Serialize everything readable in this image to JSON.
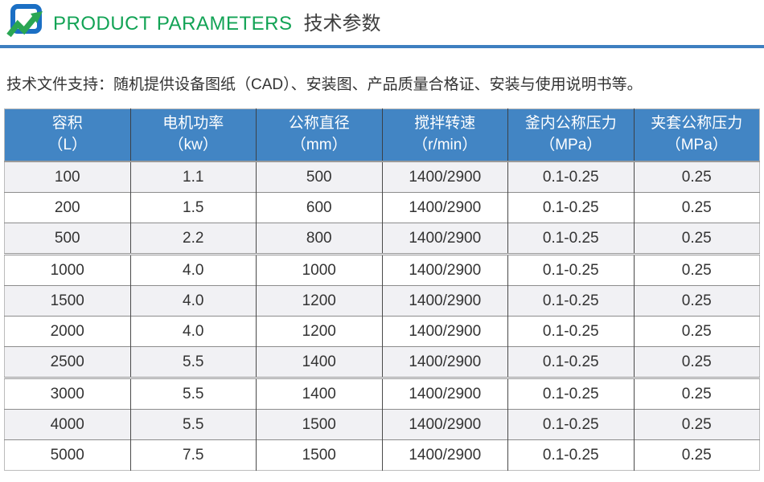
{
  "header": {
    "title_en": "PRODUCT PARAMETERS",
    "title_zh": "技术参数",
    "accent_green": "#12A355",
    "divider_blue": "#3E7FC0"
  },
  "intro": {
    "text": "技术文件支持：随机提供设备图纸（CAD）、安装图、产品质量合格证、安装与使用说明书等。"
  },
  "table": {
    "header_bg": "#4285C4",
    "row_alt_bg": "#F1F1F4",
    "columns": [
      {
        "label": "容积",
        "unit": "（L）"
      },
      {
        "label": "电机功率",
        "unit": "（kw）"
      },
      {
        "label": "公称直径",
        "unit": "（mm）"
      },
      {
        "label": "搅拌转速",
        "unit": "（r/min）"
      },
      {
        "label": "釜内公称压力",
        "unit": "（MPa）"
      },
      {
        "label": "夹套公称压力",
        "unit": "（MPa）"
      }
    ],
    "rows": [
      [
        "100",
        "1.1",
        "500",
        "1400/2900",
        "0.1-0.25",
        "0.25"
      ],
      [
        "200",
        "1.5",
        "600",
        "1400/2900",
        "0.1-0.25",
        "0.25"
      ],
      [
        "500",
        "2.2",
        "800",
        "1400/2900",
        "0.1-0.25",
        "0.25"
      ],
      [
        "1000",
        "4.0",
        "1000",
        "1400/2900",
        "0.1-0.25",
        "0.25"
      ],
      [
        "1500",
        "4.0",
        "1200",
        "1400/2900",
        "0.1-0.25",
        "0.25"
      ],
      [
        "2000",
        "4.0",
        "1200",
        "1400/2900",
        "0.1-0.25",
        "0.25"
      ],
      [
        "2500",
        "5.5",
        "1400",
        "1400/2900",
        "0.1-0.25",
        "0.25"
      ],
      [
        "3000",
        "5.5",
        "1400",
        "1400/2900",
        "0.1-0.25",
        "0.25"
      ],
      [
        "4000",
        "5.5",
        "1500",
        "1400/2900",
        "0.1-0.25",
        "0.25"
      ],
      [
        "5000",
        "7.5",
        "1500",
        "1400/2900",
        "0.1-0.25",
        "0.25"
      ]
    ],
    "group_break_before_rows": [
      3,
      7
    ]
  }
}
